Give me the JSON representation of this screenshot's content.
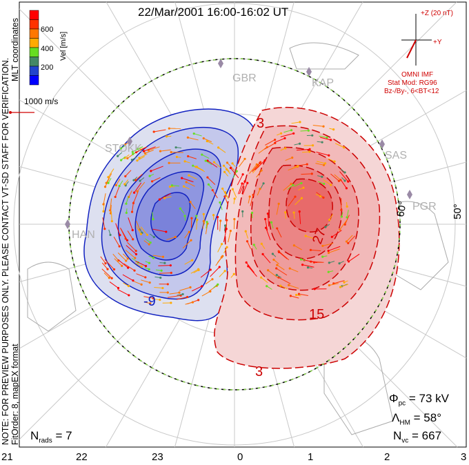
{
  "title": "22/Mar/2001 16:00-16:02 UT",
  "side_note": "NOTE: FOR PREVIEW PURPOSES ONLY. PLEASE CONTACT VT-SD STAFF FOR VERIFICATION.",
  "fit_info": "FitOrder: 8, mapEX format",
  "coords_label": "MLT coordinates",
  "colorbar": {
    "label": "Vel [m/s]",
    "ticks": [
      "600",
      "400",
      "200"
    ],
    "colors": [
      "#ff0000",
      "#ff3300",
      "#ff7700",
      "#ffaa00",
      "#66dd22",
      "#448866",
      "#2244cc",
      "#0000ff"
    ]
  },
  "ref_vector": "1000 m/s",
  "imf": {
    "z_label": "+Z (20 nT)",
    "y_label": "+Y",
    "source": "OMNI IMF",
    "model": "Stat Mod: RG96",
    "condition": "Bz-/By-, 6<BT<12",
    "color": "#d00000"
  },
  "stations": [
    "GBR",
    "KAP",
    "SAS",
    "PGR",
    "HAN",
    "STOKK"
  ],
  "lat_labels": [
    "60°",
    "50°"
  ],
  "contour_labels": {
    "neg": "-9",
    "pos_top": "3",
    "pos_27": "27",
    "pos_15": "15",
    "pos_bottom": "3"
  },
  "stats": {
    "phi_pc": "= 73 kV",
    "lambda_hm": "= 58°",
    "n_vc": "= 667",
    "n_rads": "= 7"
  },
  "mlt_labels": [
    "21",
    "22",
    "23",
    "0",
    "1",
    "2",
    "3"
  ]
}
